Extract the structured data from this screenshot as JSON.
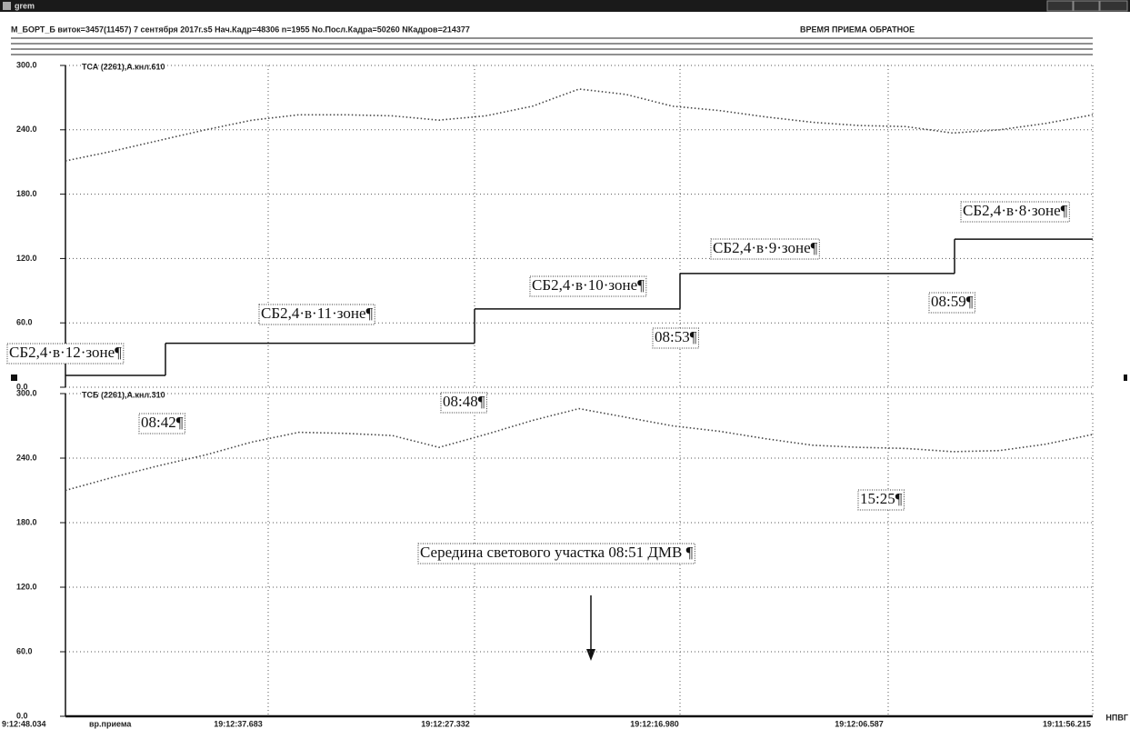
{
  "window": {
    "title": "grem",
    "header": "М_БОРТ_Б виток=3457(11457) 7 сентября 2017г.s5 Нач.Кадр=48306 n=1955 No.Посл.Кадра=50260 NКадров=214377",
    "mode": "ВРЕМЯ ПРИЕМА ОБРАТНОЕ"
  },
  "chart_data": [
    {
      "type": "line",
      "title": "ТСА (2261),А.кнл.610",
      "color": "#444",
      "values": [
        211,
        220,
        230,
        240,
        249,
        254,
        254,
        253,
        249,
        253,
        262,
        278,
        273,
        262,
        258,
        252,
        247,
        244,
        243,
        237,
        240,
        246,
        254
      ],
      "step_values": [
        11,
        41,
        73,
        106,
        138
      ],
      "step_color": "#111",
      "ylim": [
        0,
        300
      ],
      "yticks": [
        {
          "value": 300,
          "label": "300.0"
        },
        {
          "value": 240,
          "label": "240.0"
        },
        {
          "value": 180,
          "label": "180.0"
        },
        {
          "value": 120,
          "label": "120.0"
        },
        {
          "value": 60,
          "label": "60.0"
        },
        {
          "value": 0,
          "label": "0.0"
        }
      ],
      "grid": true
    },
    {
      "type": "line",
      "title": "ТСБ (2261),А.кнл.310",
      "color": "#444",
      "values": [
        210,
        222,
        233,
        243,
        255,
        264,
        263,
        261,
        250,
        262,
        275,
        286,
        278,
        270,
        265,
        258,
        252,
        250,
        249,
        246,
        247,
        253,
        262
      ],
      "ylim": [
        0,
        300
      ],
      "yticks": [
        {
          "value": 300,
          "label": "300.0"
        },
        {
          "value": 240,
          "label": "240.0"
        },
        {
          "value": 180,
          "label": "180.0"
        },
        {
          "value": 120,
          "label": "120.0"
        },
        {
          "value": 60,
          "label": "60.0"
        },
        {
          "value": 0,
          "label": "0.0"
        }
      ],
      "grid": true
    }
  ],
  "x_axis": {
    "labels": [
      "9:12:48.034",
      "вр.приема",
      "19:12:37.683",
      "19:12:27.332",
      "19:12:16.980",
      "19:12:06.587",
      "19:11:56.215"
    ],
    "unit": "НПВГ"
  },
  "annotations": [
    "СБ2,4·в·12·зоне¶",
    "СБ2,4·в·11·зоне¶",
    "СБ2,4·в·10·зоне¶",
    "СБ2,4·в·9·зоне¶",
    "СБ2,4·в·8·зоне¶",
    "08:42¶",
    "08:48¶",
    "08:53¶",
    "08:59¶",
    "15:25¶",
    "Середина светового участка 08:51 ДМВ ¶"
  ]
}
